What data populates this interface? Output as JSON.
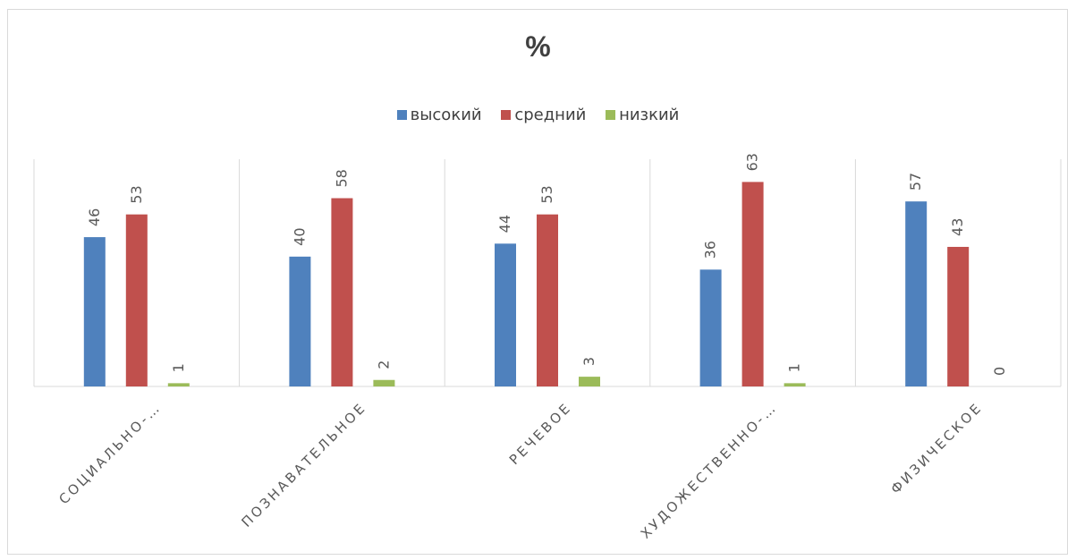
{
  "chart_data": {
    "type": "bar",
    "title": "%",
    "categories": [
      "СОЦИАЛЬНО-…",
      "ПОЗНАВАТЕЛЬНОЕ",
      "РЕЧЕВОЕ",
      "ХУДОЖЕСТВЕННО-…",
      "ФИЗИЧЕСКОЕ"
    ],
    "series": [
      {
        "name": "высокий",
        "values": [
          46,
          40,
          44,
          36,
          57
        ],
        "color": "#4f81bd"
      },
      {
        "name": "средний",
        "values": [
          53,
          58,
          53,
          63,
          43
        ],
        "color": "#c0504d"
      },
      {
        "name": "низкий",
        "values": [
          1,
          2,
          3,
          1,
          0
        ],
        "color": "#9bbb59"
      }
    ],
    "ylim": [
      0,
      70
    ],
    "legend_position": "top",
    "grid": "vertical category separators"
  }
}
